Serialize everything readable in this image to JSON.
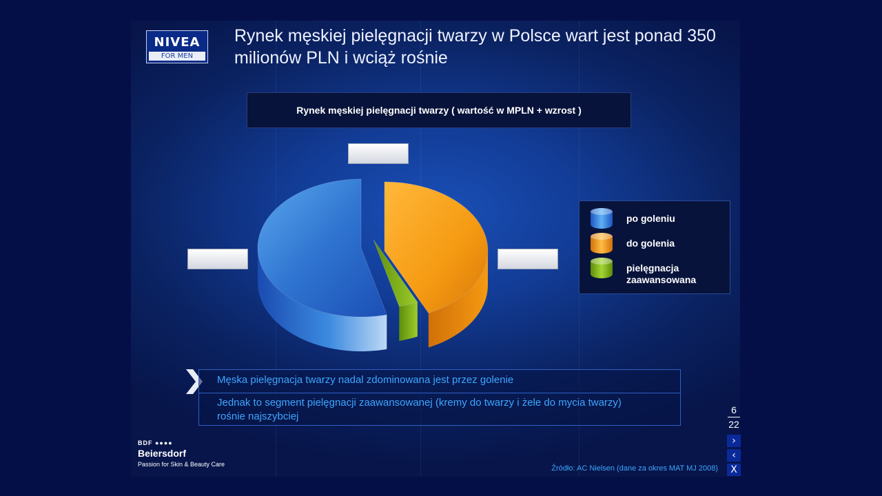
{
  "logo": {
    "brand": "NIVEA",
    "sub": "FOR MEN"
  },
  "headline": "Rynek męskiej pielęgnacji twarzy w Polsce wart jest ponad 350 milionów PLN i wciąż rośnie",
  "chart_data": {
    "type": "pie",
    "title": "Rynek męskiej pielęgnacji twarzy ( wartość w MPLN + wzrost )",
    "series": [
      {
        "name": "po goleniu",
        "value": 54,
        "color": "#3b86dd"
      },
      {
        "name": "do golenia",
        "value": 43,
        "color": "#f39a1a"
      },
      {
        "name": "pielęgnacja zaawansowana",
        "value": 3,
        "color": "#7dae16"
      }
    ],
    "legend_position": "right"
  },
  "legend": {
    "items": [
      {
        "label": "po goleniu",
        "color": "#3b86dd"
      },
      {
        "label": "do golenia",
        "color": "#f39a1a"
      },
      {
        "label": "pielęgnacja zaawansowana",
        "color": "#7dae16"
      }
    ]
  },
  "notes": {
    "line1": "Męska pielęgnacja twarzy nadal zdominowana jest przez golenie",
    "line2": "Jednak to segment pielęgnacji zaawansowanej (kremy do twarzy i żele do mycia twarzy) rośnie najszybciej"
  },
  "company": {
    "dots": "BDF ●●●●",
    "name": "Beiersdorf",
    "tagline": "Passion for Skin & Beauty Care"
  },
  "source": "Źródło: AC Nielsen (dane za okres MAT MJ 2008)",
  "pager": {
    "current": "6",
    "total": "22"
  },
  "nav": {
    "next": "›",
    "prev": "‹",
    "close": "X"
  }
}
